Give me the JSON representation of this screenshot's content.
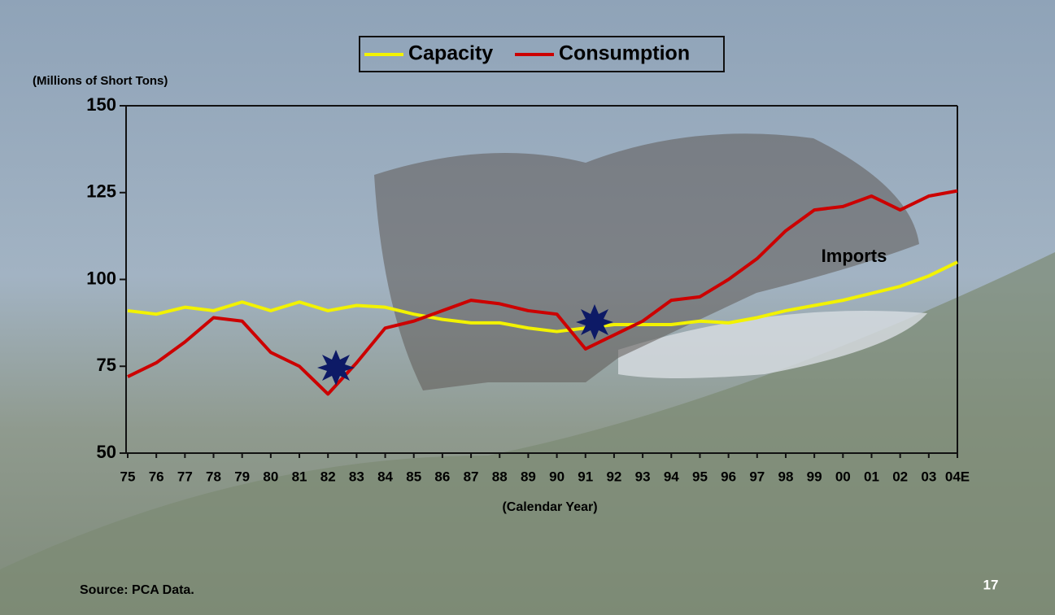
{
  "chart_data": {
    "type": "line",
    "y_label": "(Millions of Short Tons)",
    "x_label": "(Calendar Year)",
    "categories": [
      "75",
      "76",
      "77",
      "78",
      "79",
      "80",
      "81",
      "82",
      "83",
      "84",
      "85",
      "86",
      "87",
      "88",
      "89",
      "90",
      "91",
      "92",
      "93",
      "94",
      "95",
      "96",
      "97",
      "98",
      "99",
      "00",
      "01",
      "02",
      "03",
      "04E"
    ],
    "series": [
      {
        "name": "Capacity",
        "color": "#f2f200",
        "values": [
          91,
          90,
          92,
          91,
          93.5,
          91,
          93.5,
          91,
          92.5,
          92,
          90,
          88.5,
          87.5,
          87.5,
          86,
          85,
          86,
          87,
          87,
          87,
          88,
          87.5,
          89,
          91,
          92.5,
          94,
          96,
          98,
          101,
          105
        ]
      },
      {
        "name": "Consumption",
        "color": "#cc0000",
        "values": [
          72,
          76,
          82,
          89,
          88,
          79,
          75,
          67,
          76,
          86,
          88,
          91,
          94,
          93,
          91,
          90,
          80,
          84,
          88,
          94,
          95,
          100,
          106,
          114,
          120,
          121,
          124,
          120,
          124,
          125.5
        ]
      }
    ],
    "ylim": [
      50,
      150
    ],
    "yticks": [
      50,
      75,
      100,
      125,
      150
    ],
    "annotation": "Imports",
    "source": "Source: PCA Data.",
    "page_number": "17"
  }
}
